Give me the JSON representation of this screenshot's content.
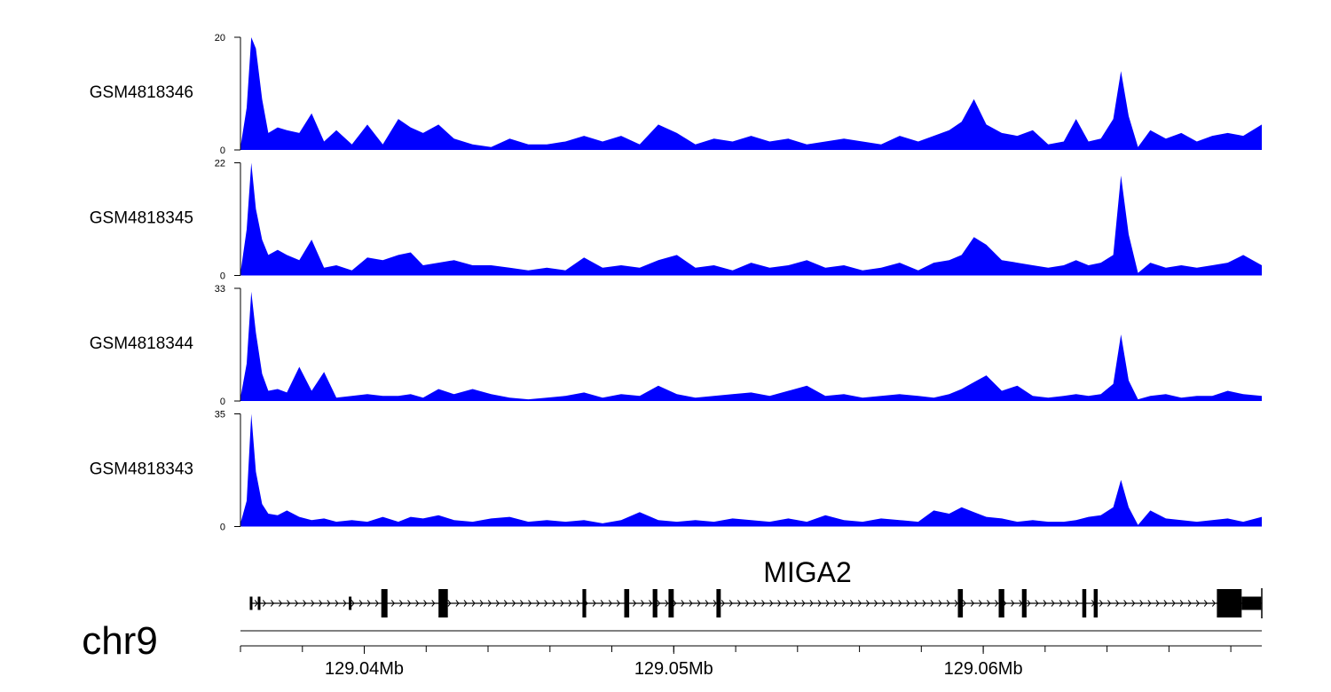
{
  "chart_data": {
    "type": "area",
    "chromosome": "chr9",
    "x_unit": "bp",
    "xlim": [
      129036000,
      129069000
    ],
    "x_ticks": [
      {
        "value": 129040000,
        "label": "129.04Mb"
      },
      {
        "value": 129050000,
        "label": "129.05Mb"
      },
      {
        "value": 129060000,
        "label": "129.06Mb"
      }
    ],
    "x_minor_tick_step": 2000,
    "fill_color": "#0000ff",
    "tracks": [
      {
        "name": "GSM4818346",
        "ylim": [
          0,
          20
        ],
        "ytick_labels": [
          "0",
          "20"
        ],
        "x": [
          129036000,
          129036200,
          129036350,
          129036500,
          129036700,
          129036900,
          129037200,
          129037500,
          129037900,
          129038300,
          129038700,
          129039100,
          129039600,
          129040100,
          129040600,
          129041100,
          129041500,
          129041900,
          129042400,
          129042900,
          129043500,
          129044100,
          129044700,
          129045300,
          129045900,
          129046500,
          129047100,
          129047700,
          129048300,
          129048900,
          129049500,
          129050100,
          129050700,
          129051300,
          129051900,
          129052500,
          129053100,
          129053700,
          129054300,
          129054900,
          129055500,
          129056100,
          129056700,
          129057300,
          129057900,
          129058400,
          129058900,
          129059300,
          129059700,
          129060100,
          129060600,
          129061100,
          129061600,
          129062100,
          129062600,
          129063000,
          129063400,
          129063800,
          129064200,
          129064450,
          129064700,
          129065000,
          129065400,
          129065900,
          129066400,
          129066900,
          129067400,
          129067900,
          129068400,
          129069000
        ],
        "values": [
          0.5,
          7.5,
          20,
          18,
          9,
          3,
          4,
          3.5,
          3,
          6.5,
          1.5,
          3.5,
          1,
          4.5,
          1,
          5.5,
          4,
          3,
          4.5,
          2,
          1,
          0.5,
          2,
          1,
          1,
          1.5,
          2.5,
          1.5,
          2.5,
          1,
          4.5,
          3,
          1,
          2,
          1.5,
          2.5,
          1.5,
          2,
          1,
          1.5,
          2,
          1.5,
          1,
          2.5,
          1.5,
          2.5,
          3.5,
          5,
          9,
          4.5,
          3,
          2.5,
          3.5,
          1,
          1.5,
          5.5,
          1.5,
          2,
          5.5,
          14,
          6,
          0.5,
          3.5,
          2,
          3,
          1.5,
          2.5,
          3,
          2.5,
          4.5
        ]
      },
      {
        "name": "GSM4818345",
        "ylim": [
          0,
          22
        ],
        "ytick_labels": [
          "0",
          "22"
        ],
        "x": [
          129036000,
          129036200,
          129036350,
          129036500,
          129036700,
          129036900,
          129037200,
          129037500,
          129037900,
          129038300,
          129038700,
          129039100,
          129039600,
          129040100,
          129040600,
          129041100,
          129041500,
          129041900,
          129042400,
          129042900,
          129043500,
          129044100,
          129044700,
          129045300,
          129045900,
          129046500,
          129047100,
          129047700,
          129048300,
          129048900,
          129049500,
          129050100,
          129050700,
          129051300,
          129051900,
          129052500,
          129053100,
          129053700,
          129054300,
          129054900,
          129055500,
          129056100,
          129056700,
          129057300,
          129057900,
          129058400,
          129058900,
          129059300,
          129059700,
          129060100,
          129060600,
          129061100,
          129061600,
          129062100,
          129062600,
          129063000,
          129063400,
          129063800,
          129064200,
          129064450,
          129064700,
          129065000,
          129065400,
          129065900,
          129066400,
          129066900,
          129067400,
          129067900,
          129068400,
          129069000
        ],
        "values": [
          0.5,
          9,
          22,
          13,
          7,
          4,
          5,
          4,
          3,
          7,
          1.5,
          2,
          1,
          3.5,
          3,
          4,
          4.5,
          2,
          2.5,
          3,
          2,
          2,
          1.5,
          1,
          1.5,
          1,
          3.5,
          1.5,
          2,
          1.5,
          3,
          4,
          1.5,
          2,
          1,
          2.5,
          1.5,
          2,
          3,
          1.5,
          2,
          1,
          1.5,
          2.5,
          1,
          2.5,
          3,
          4,
          7.5,
          6,
          3,
          2.5,
          2,
          1.5,
          2,
          3,
          2,
          2.5,
          4,
          19.5,
          8,
          0.5,
          2.5,
          1.5,
          2,
          1.5,
          2,
          2.5,
          4,
          2
        ]
      },
      {
        "name": "GSM4818344",
        "ylim": [
          0,
          33
        ],
        "ytick_labels": [
          "0",
          "33"
        ],
        "x": [
          129036000,
          129036200,
          129036350,
          129036500,
          129036700,
          129036900,
          129037200,
          129037500,
          129037900,
          129038300,
          129038700,
          129039100,
          129039600,
          129040100,
          129040600,
          129041100,
          129041500,
          129041900,
          129042400,
          129042900,
          129043500,
          129044100,
          129044700,
          129045300,
          129045900,
          129046500,
          129047100,
          129047700,
          129048300,
          129048900,
          129049500,
          129050100,
          129050700,
          129051300,
          129051900,
          129052500,
          129053100,
          129053700,
          129054300,
          129054900,
          129055500,
          129056100,
          129056700,
          129057300,
          129057900,
          129058400,
          129058900,
          129059300,
          129059700,
          129060100,
          129060600,
          129061100,
          129061600,
          129062100,
          129062600,
          129063000,
          129063400,
          129063800,
          129064200,
          129064450,
          129064700,
          129065000,
          129065400,
          129065900,
          129066400,
          129066900,
          129067400,
          129067900,
          129068400,
          129069000
        ],
        "values": [
          1,
          11,
          32,
          20,
          8,
          3,
          3.5,
          2.5,
          10,
          3,
          8.5,
          1,
          1.5,
          2,
          1.5,
          1.5,
          2,
          1,
          3.5,
          2,
          3.5,
          2,
          1,
          0.5,
          1,
          1.5,
          2.5,
          1,
          2,
          1.5,
          4.5,
          2,
          1,
          1.5,
          2,
          2.5,
          1.5,
          3,
          4.5,
          1.5,
          2,
          1,
          1.5,
          2,
          1.5,
          1,
          2,
          3.5,
          5.5,
          7.5,
          3,
          4.5,
          1.5,
          1,
          1.5,
          2,
          1.5,
          2,
          5,
          19.5,
          6,
          0.5,
          1.5,
          2,
          1,
          1.5,
          1.5,
          3,
          2,
          1.5
        ]
      },
      {
        "name": "GSM4818343",
        "ylim": [
          0,
          35
        ],
        "ytick_labels": [
          "0",
          "35"
        ],
        "x": [
          129036000,
          129036200,
          129036350,
          129036500,
          129036700,
          129036900,
          129037200,
          129037500,
          129037900,
          129038300,
          129038700,
          129039100,
          129039600,
          129040100,
          129040600,
          129041100,
          129041500,
          129041900,
          129042400,
          129042900,
          129043500,
          129044100,
          129044700,
          129045300,
          129045900,
          129046500,
          129047100,
          129047700,
          129048300,
          129048900,
          129049500,
          129050100,
          129050700,
          129051300,
          129051900,
          129052500,
          129053100,
          129053700,
          129054300,
          129054900,
          129055500,
          129056100,
          129056700,
          129057300,
          129057900,
          129058400,
          129058900,
          129059300,
          129059700,
          129060100,
          129060600,
          129061100,
          129061600,
          129062100,
          129062600,
          129063000,
          129063400,
          129063800,
          129064200,
          129064450,
          129064700,
          129065000,
          129065400,
          129065900,
          129066400,
          129066900,
          129067400,
          129067900,
          129068400,
          129069000
        ],
        "values": [
          1,
          8,
          35,
          17,
          7,
          4,
          3.5,
          5,
          3,
          2,
          2.5,
          1.5,
          2,
          1.5,
          3,
          1.5,
          3,
          2.5,
          3.5,
          2,
          1.5,
          2.5,
          3,
          1.5,
          2,
          1.5,
          2,
          1,
          2,
          4.5,
          2,
          1.5,
          2,
          1.5,
          2.5,
          2,
          1.5,
          2.5,
          1.5,
          3.5,
          2,
          1.5,
          2.5,
          2,
          1.5,
          5,
          4,
          6,
          4.5,
          3,
          2.5,
          1.5,
          2,
          1.5,
          1.5,
          2,
          3,
          3.5,
          6,
          14.5,
          6,
          0.5,
          5,
          2.5,
          2,
          1.5,
          2,
          2.5,
          1.5,
          3
        ]
      }
    ],
    "gene_track": {
      "gene_name": "MIGA2",
      "strand": "+",
      "start": 129036300,
      "end": 129069000,
      "exons": [
        {
          "start": 129036300,
          "end": 129036360,
          "kind": "utr"
        },
        {
          "start": 129036560,
          "end": 129036620,
          "kind": "utr"
        },
        {
          "start": 129039500,
          "end": 129039580,
          "kind": "utr"
        },
        {
          "start": 129040550,
          "end": 129040750,
          "kind": "cds"
        },
        {
          "start": 129042400,
          "end": 129042700,
          "kind": "cds"
        },
        {
          "start": 129047050,
          "end": 129047170,
          "kind": "cds"
        },
        {
          "start": 129048400,
          "end": 129048560,
          "kind": "cds"
        },
        {
          "start": 129049320,
          "end": 129049470,
          "kind": "cds"
        },
        {
          "start": 129049830,
          "end": 129050000,
          "kind": "cds"
        },
        {
          "start": 129051380,
          "end": 129051520,
          "kind": "cds"
        },
        {
          "start": 129059180,
          "end": 129059340,
          "kind": "cds"
        },
        {
          "start": 129060500,
          "end": 129060680,
          "kind": "cds"
        },
        {
          "start": 129061250,
          "end": 129061400,
          "kind": "cds"
        },
        {
          "start": 129063200,
          "end": 129063330,
          "kind": "cds"
        },
        {
          "start": 129063570,
          "end": 129063700,
          "kind": "cds"
        },
        {
          "start": 129067550,
          "end": 129068350,
          "kind": "cds"
        },
        {
          "start": 129068350,
          "end": 129068980,
          "kind": "utr"
        }
      ]
    }
  }
}
